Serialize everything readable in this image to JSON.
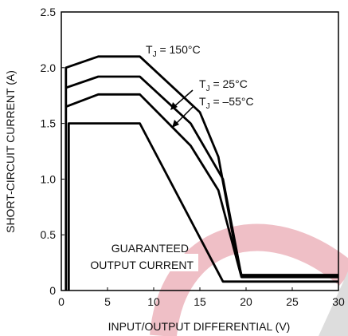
{
  "chart_data": {
    "type": "line",
    "xlabel": "INPUT/OUTPUT DIFFERENTIAL (V)",
    "ylabel": "SHORT-CIRCUIT CURRENT (A)",
    "xlim": [
      0,
      30
    ],
    "xticks": [
      0,
      5,
      10,
      15,
      20,
      25,
      30
    ],
    "ylim": [
      0,
      2.5
    ],
    "yticks": [
      {
        "value": 0,
        "label": "0"
      },
      {
        "value": 0.5,
        "label": "0.5"
      },
      {
        "value": 1,
        "label": "1.0"
      },
      {
        "value": 1.5,
        "label": "1.5"
      },
      {
        "value": 2,
        "label": "2.0"
      },
      {
        "value": 2.5,
        "label": "2.5"
      }
    ],
    "series": [
      {
        "label_parts": [
          "T",
          "J",
          " = 150°C"
        ],
        "color": "#000000",
        "x": [
          0.5,
          0.5,
          4,
          8.5,
          15,
          17,
          19,
          19.5,
          30
        ],
        "values": [
          0,
          2.0,
          2.1,
          2.1,
          1.6,
          1.2,
          0.3,
          0.14,
          0.14
        ]
      },
      {
        "label_parts": [
          "T",
          "J",
          " = 25°C"
        ],
        "color": "#000000",
        "x": [
          0.5,
          4,
          8.5,
          14,
          17.5,
          19.5,
          30
        ],
        "values": [
          1.82,
          1.92,
          1.92,
          1.5,
          1.0,
          0.13,
          0.13
        ]
      },
      {
        "label_parts": [
          "T",
          "J",
          " = –55°C"
        ],
        "color": "#000000",
        "x": [
          0.5,
          4,
          8.5,
          14,
          17,
          19.5,
          30
        ],
        "values": [
          1.65,
          1.76,
          1.76,
          1.3,
          0.9,
          0.12,
          0.12
        ]
      },
      {
        "label_parts": [
          "GUARANTEED",
          "OUTPUT CURRENT"
        ],
        "color": "#000000",
        "x": [
          0.8,
          0.8,
          8.5,
          17.5,
          30
        ],
        "values": [
          0,
          1.5,
          1.5,
          0.08,
          0.08
        ]
      }
    ]
  }
}
